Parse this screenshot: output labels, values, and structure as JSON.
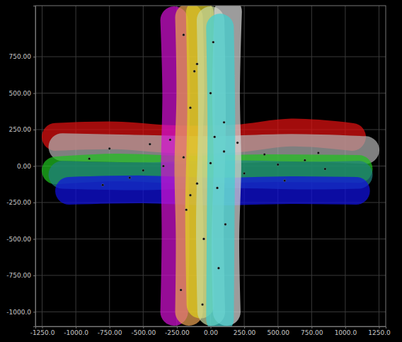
{
  "chart_data": {
    "type": "line",
    "xlim": [
      -1300,
      1300
    ],
    "ylim": [
      -1100,
      1100
    ],
    "xticks": [
      {
        "value": -1250,
        "label": "-1250.0"
      },
      {
        "value": -1000,
        "label": "-1000.0"
      },
      {
        "value": -750,
        "label": "-750.00"
      },
      {
        "value": -500,
        "label": "-500.00"
      },
      {
        "value": -250,
        "label": "-250.00"
      },
      {
        "value": 0,
        "label": "0.00"
      },
      {
        "value": 250,
        "label": "250.00"
      },
      {
        "value": 500,
        "label": "500.00"
      },
      {
        "value": 750,
        "label": "750.00"
      },
      {
        "value": 1000,
        "label": "1000.0"
      },
      {
        "value": 1250,
        "label": "1250.0"
      }
    ],
    "yticks": [
      {
        "value": -1000,
        "label": "-1000.0"
      },
      {
        "value": -750,
        "label": "-750.00"
      },
      {
        "value": -500,
        "label": "-500.00"
      },
      {
        "value": -250,
        "label": "-250.00"
      },
      {
        "value": 0,
        "label": "0.00"
      },
      {
        "value": 250,
        "label": "250.00"
      },
      {
        "value": 500,
        "label": "500.00"
      },
      {
        "value": 750,
        "label": "750.00"
      }
    ],
    "grid": true,
    "series": [
      {
        "type": "line",
        "color": "#e01010",
        "x": [
          -1150,
          -700,
          -300,
          200,
          600,
          1050
        ],
        "y": [
          200,
          210,
          185,
          190,
          230,
          200
        ]
      },
      {
        "type": "line",
        "color": "#b0b0b0",
        "x": [
          -1100,
          -600,
          0,
          600,
          1150
        ],
        "y": [
          130,
          120,
          110,
          125,
          110
        ]
      },
      {
        "type": "line",
        "color": "#20c020",
        "x": [
          -1150,
          -700,
          -200,
          400,
          1100
        ],
        "y": [
          -30,
          -10,
          -25,
          -15,
          -20
        ]
      },
      {
        "type": "line",
        "color": "#208080",
        "x": [
          -1100,
          -500,
          100,
          700,
          1100
        ],
        "y": [
          -60,
          -70,
          -55,
          -65,
          -60
        ]
      },
      {
        "type": "line",
        "color": "#1010e0",
        "x": [
          -1050,
          -500,
          0,
          600,
          1080
        ],
        "y": [
          -170,
          -160,
          -175,
          -165,
          -170
        ]
      },
      {
        "type": "line",
        "color": "#d010d0",
        "x": [
          -270,
          -255,
          -265,
          -260,
          -270
        ],
        "y": [
          1000,
          500,
          0,
          -500,
          -1000
        ]
      },
      {
        "type": "line",
        "color": "#e8a050",
        "x": [
          -160,
          -150,
          -165,
          -155,
          -160
        ],
        "y": [
          1020,
          500,
          0,
          -500,
          -1000
        ]
      },
      {
        "type": "line",
        "color": "#e0d020",
        "x": [
          -80,
          -70,
          -85,
          -75
        ],
        "y": [
          1050,
          400,
          -300,
          -950
        ]
      },
      {
        "type": "line",
        "color": "#c8d8a0",
        "x": [
          0,
          10,
          -5,
          5
        ],
        "y": [
          1000,
          300,
          -400,
          -1000
        ]
      },
      {
        "type": "line",
        "color": "#d8d8d8",
        "x": [
          130,
          115,
          125,
          110,
          120
        ],
        "y": [
          1060,
          500,
          0,
          -500,
          -1000
        ]
      },
      {
        "type": "line",
        "color": "#40d0d0",
        "x": [
          70,
          80,
          75,
          70
        ],
        "y": [
          950,
          300,
          -400,
          -1050
        ]
      },
      {
        "type": "scatter",
        "color": "#000000",
        "marker": "dot",
        "x": [
          -900,
          -750,
          -600,
          -450,
          -350,
          -200,
          -100,
          0,
          100,
          250,
          400,
          550,
          700,
          850,
          -800,
          -500,
          -300,
          -150,
          50,
          200,
          500,
          800,
          -200,
          -100,
          0,
          100,
          -180,
          -50,
          60,
          -220,
          -120,
          20,
          110,
          -60,
          30,
          -150
        ],
        "y": [
          50,
          120,
          -80,
          150,
          0,
          60,
          -120,
          20,
          100,
          -50,
          80,
          -100,
          40,
          -20,
          -130,
          -30,
          180,
          -200,
          -150,
          160,
          10,
          90,
          900,
          700,
          500,
          300,
          -300,
          -500,
          -700,
          -850,
          650,
          850,
          -400,
          -950,
          200,
          400
        ]
      }
    ]
  }
}
